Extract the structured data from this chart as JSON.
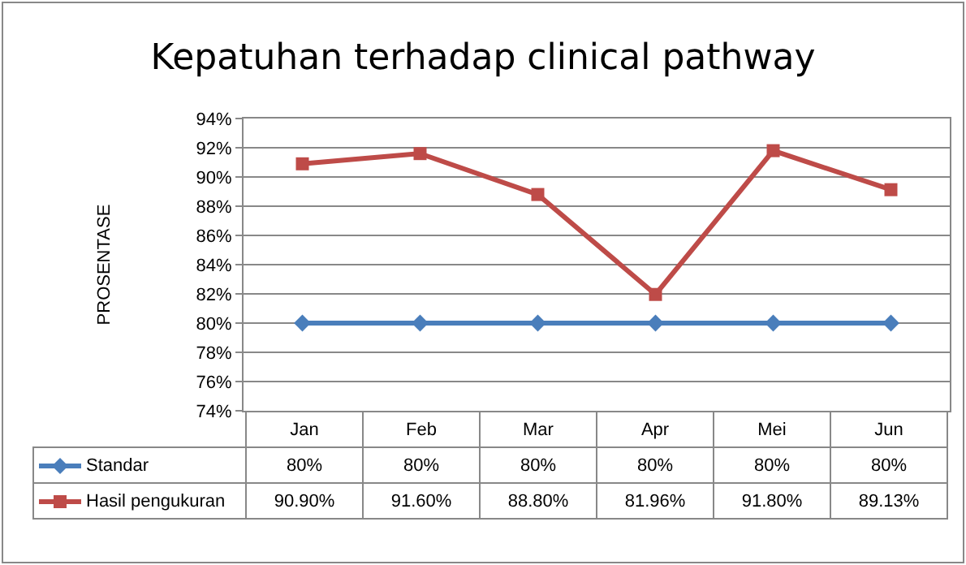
{
  "chart_data": {
    "type": "line",
    "title": "Kepatuhan terhadap clinical pathway",
    "ylabel": "PROSENTASE",
    "categories": [
      "Jan",
      "Feb",
      "Mar",
      "Apr",
      "Mei",
      "Jun"
    ],
    "series": [
      {
        "name": "Standar",
        "color": "#4a7ebb",
        "marker": "diamond",
        "values": [
          80,
          80,
          80,
          80,
          80,
          80
        ],
        "value_labels": [
          "80%",
          "80%",
          "80%",
          "80%",
          "80%",
          "80%"
        ]
      },
      {
        "name": "Hasil pengukuran",
        "color": "#be4b48",
        "marker": "square",
        "values": [
          90.9,
          91.6,
          88.8,
          81.96,
          91.8,
          89.13
        ],
        "value_labels": [
          "90.90%",
          "91.60%",
          "88.80%",
          "81.96%",
          "91.80%",
          "89.13%"
        ]
      }
    ],
    "ylim": [
      74,
      94
    ],
    "yticks": [
      {
        "value": 74,
        "label": "74%"
      },
      {
        "value": 76,
        "label": "76%"
      },
      {
        "value": 78,
        "label": "78%"
      },
      {
        "value": 80,
        "label": "80%"
      },
      {
        "value": 82,
        "label": "82%"
      },
      {
        "value": 84,
        "label": "84%"
      },
      {
        "value": 86,
        "label": "86%"
      },
      {
        "value": 88,
        "label": "88%"
      },
      {
        "value": 90,
        "label": "90%"
      },
      {
        "value": 92,
        "label": "92%"
      },
      {
        "value": 94,
        "label": "94%"
      }
    ],
    "grid": "y",
    "legend": "bottom",
    "line_style": "solid"
  }
}
